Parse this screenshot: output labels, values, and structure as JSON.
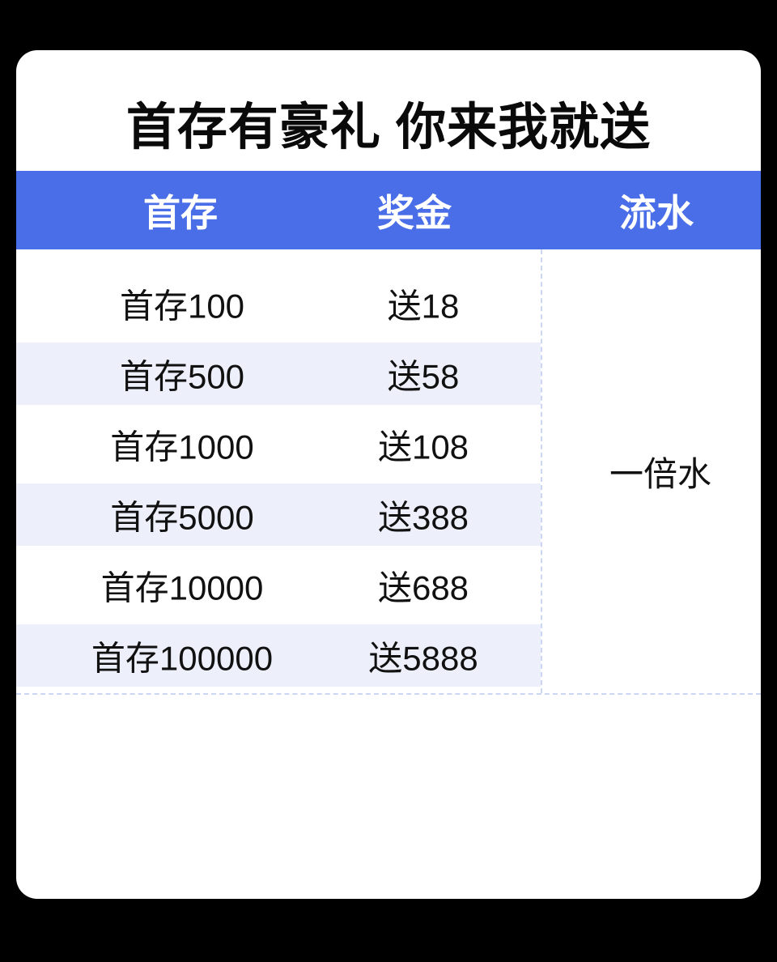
{
  "page": {
    "background_color": "#000000",
    "card_color": "#ffffff"
  },
  "title": "首存有豪礼 你来我就送",
  "table": {
    "header": {
      "background_color": "#4a6de8",
      "text_color": "#ffffff",
      "columns": [
        "首存",
        "奖金",
        "流水"
      ]
    },
    "rows": [
      {
        "deposit": "首存100",
        "bonus": "送18"
      },
      {
        "deposit": "首存500",
        "bonus": "送58"
      },
      {
        "deposit": "首存1000",
        "bonus": "送108"
      },
      {
        "deposit": "首存5000",
        "bonus": "送388"
      },
      {
        "deposit": "首存10000",
        "bonus": "送688"
      },
      {
        "deposit": "首存100000",
        "bonus": "送5888"
      }
    ],
    "turnover": "一倍水",
    "stripe_color": "#edf0fb",
    "divider_color": "#ccd5f2"
  }
}
